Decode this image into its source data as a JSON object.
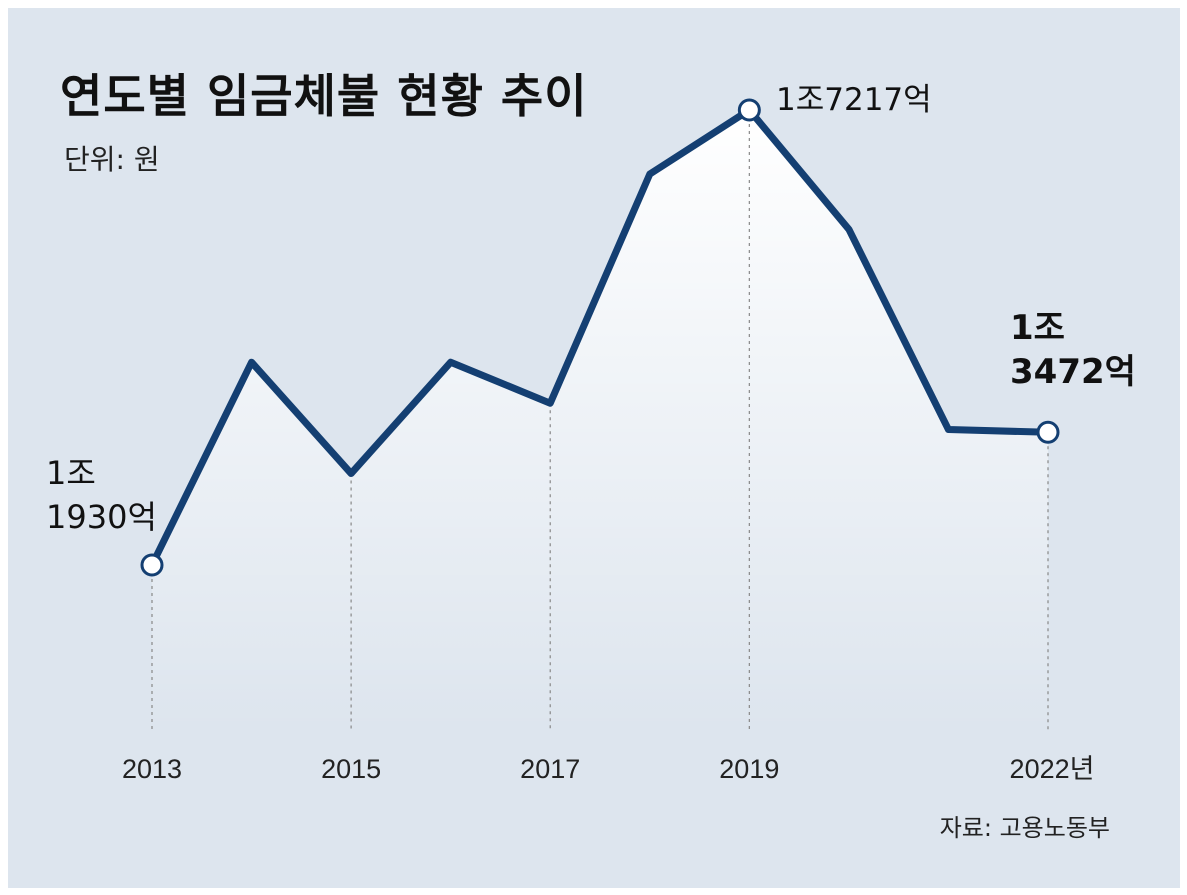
{
  "header": {
    "title": "연도별 임금체불 현황 추이",
    "unit": "단위: 원"
  },
  "footer": {
    "source": "자료: 고용노동부"
  },
  "colors": {
    "background": "#dde5ee",
    "line": "#143f72",
    "marker_fill": "#ffffff",
    "guide": "#888888"
  },
  "chart_data": {
    "type": "line",
    "title": "연도별 임금체불 현황 추이",
    "x": [
      2013,
      2014,
      2015,
      2016,
      2017,
      2018,
      2019,
      2020,
      2021,
      2022
    ],
    "series": [
      {
        "values": [
          11930,
          14286,
          12993,
          14286,
          13810,
          16472,
          17217,
          15830,
          13504,
          13472
        ]
      }
    ],
    "value_unit": "억원",
    "tick_labels": [
      {
        "x": 2013,
        "label": "2013"
      },
      {
        "x": 2015,
        "label": "2015"
      },
      {
        "x": 2017,
        "label": "2017"
      },
      {
        "x": 2019,
        "label": "2019"
      },
      {
        "x": 2022,
        "label": "2022년"
      }
    ],
    "annotations": [
      {
        "x": 2013,
        "lines": [
          "1조",
          "1930억"
        ],
        "bold": false
      },
      {
        "x": 2019,
        "lines": [
          "1조7217억"
        ],
        "bold": false
      },
      {
        "x": 2022,
        "lines": [
          "1조",
          "3472억"
        ],
        "bold": true
      }
    ],
    "markers_at": [
      2013,
      2019,
      2022
    ],
    "guides_at": [
      2013,
      2015,
      2017,
      2019,
      2022
    ],
    "ylim": [
      9500,
      18000
    ],
    "grid": false
  }
}
